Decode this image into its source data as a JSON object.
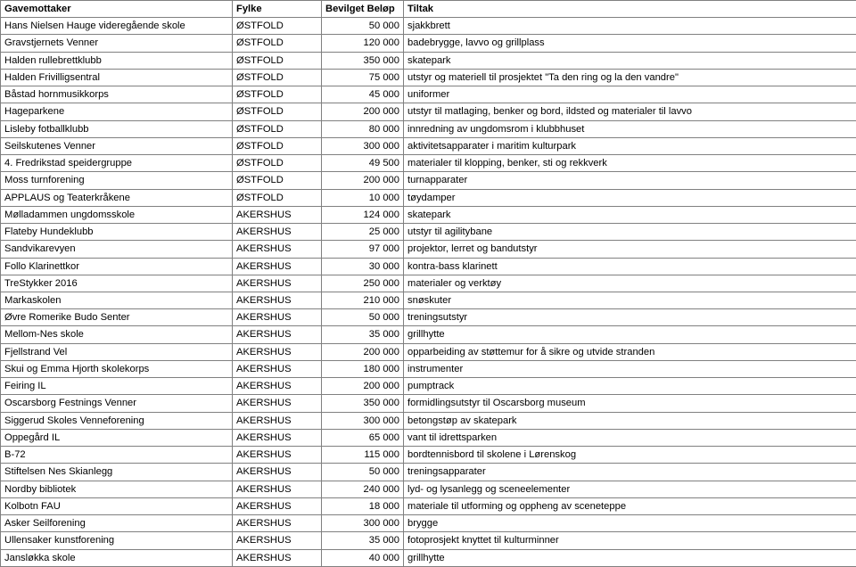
{
  "table": {
    "columns": [
      "Gavemottaker",
      "Fylke",
      "Bevilget Beløp",
      "Tiltak"
    ],
    "col_align": [
      "left",
      "left",
      "right",
      "left"
    ],
    "border_color": "#808080",
    "background_color": "#ffffff",
    "font_family": "Arial",
    "font_size_pt": 8.5,
    "header_font_weight": "bold",
    "rows": [
      [
        "Hans Nielsen Hauge videregående skole",
        "ØSTFOLD",
        "50 000",
        "sjakkbrett"
      ],
      [
        "Gravstjernets Venner",
        "ØSTFOLD",
        "120 000",
        "badebrygge, lavvo og grillplass"
      ],
      [
        "Halden rullebrettklubb",
        "ØSTFOLD",
        "350 000",
        "skatepark"
      ],
      [
        "Halden Frivilligsentral",
        "ØSTFOLD",
        "75 000",
        "utstyr og materiell til prosjektet \"Ta den ring og la den vandre\""
      ],
      [
        "Båstad hornmusikkorps",
        "ØSTFOLD",
        "45 000",
        "uniformer"
      ],
      [
        "Hageparkene",
        "ØSTFOLD",
        "200 000",
        "utstyr til matlaging, benker og bord, ildsted og materialer til lavvo"
      ],
      [
        "Lisleby fotballklubb",
        "ØSTFOLD",
        "80 000",
        "innredning av ungdomsrom i klubbhuset"
      ],
      [
        "Seilskutenes Venner",
        "ØSTFOLD",
        "300 000",
        "aktivitetsapparater i maritim kulturpark"
      ],
      [
        "4. Fredrikstad speidergruppe",
        "ØSTFOLD",
        "49 500",
        "materialer til klopping, benker, sti og rekkverk"
      ],
      [
        "Moss turnforening",
        "ØSTFOLD",
        "200 000",
        "turnapparater"
      ],
      [
        "APPLAUS og Teaterkråkene",
        "ØSTFOLD",
        "10 000",
        "tøydamper"
      ],
      [
        "Mølladammen ungdomsskole",
        "AKERSHUS",
        "124 000",
        "skatepark"
      ],
      [
        "Flateby Hundeklubb",
        "AKERSHUS",
        "25 000",
        "utstyr til agilitybane"
      ],
      [
        "Sandvikarevyen",
        "AKERSHUS",
        "97 000",
        "projektor, lerret og bandutstyr"
      ],
      [
        "Follo Klarinettkor",
        "AKERSHUS",
        "30 000",
        "kontra-bass klarinett"
      ],
      [
        "TreStykker 2016",
        "AKERSHUS",
        "250 000",
        "materialer og verktøy"
      ],
      [
        "Markaskolen",
        "AKERSHUS",
        "210 000",
        "snøskuter"
      ],
      [
        "Øvre Romerike Budo Senter",
        "AKERSHUS",
        "50 000",
        "treningsutstyr"
      ],
      [
        "Mellom-Nes skole",
        "AKERSHUS",
        "35 000",
        "grillhytte"
      ],
      [
        "Fjellstrand Vel",
        "AKERSHUS",
        "200 000",
        "opparbeiding av støttemur for å sikre og utvide stranden"
      ],
      [
        "Skui og Emma Hjorth skolekorps",
        "AKERSHUS",
        "180 000",
        "instrumenter"
      ],
      [
        "Feiring IL",
        "AKERSHUS",
        "200 000",
        "pumptrack"
      ],
      [
        "Oscarsborg Festnings Venner",
        "AKERSHUS",
        "350 000",
        "formidlingsutstyr til Oscarsborg museum"
      ],
      [
        "Siggerud Skoles Venneforening",
        "AKERSHUS",
        "300 000",
        "betongstøp av skatepark"
      ],
      [
        "Oppegård IL",
        "AKERSHUS",
        "65 000",
        "vant til idrettsparken"
      ],
      [
        "B-72",
        "AKERSHUS",
        "115 000",
        "bordtennisbord til skolene i Lørenskog"
      ],
      [
        "Stiftelsen Nes Skianlegg",
        "AKERSHUS",
        "50 000",
        "treningsapparater"
      ],
      [
        "Nordby bibliotek",
        "AKERSHUS",
        "240 000",
        "lyd- og lysanlegg og sceneelementer"
      ],
      [
        "Kolbotn FAU",
        "AKERSHUS",
        "18 000",
        "materiale til utforming og oppheng av sceneteppe"
      ],
      [
        "Asker Seilforening",
        "AKERSHUS",
        "300 000",
        "brygge"
      ],
      [
        "Ullensaker kunstforening",
        "AKERSHUS",
        "35 000",
        "fotoprosjekt knyttet til kulturminner"
      ],
      [
        "Jansløkka skole",
        "AKERSHUS",
        "40 000",
        "grillhytte"
      ]
    ]
  }
}
